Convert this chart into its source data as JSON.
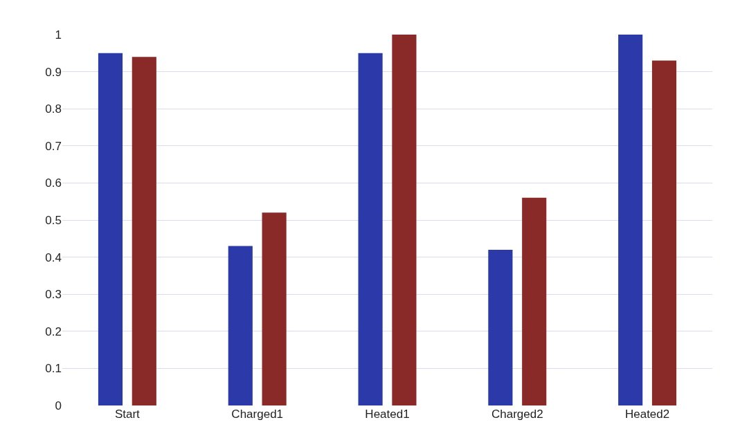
{
  "chart_data": {
    "type": "bar",
    "categories": [
      "Start",
      "Charged1",
      "Heated1",
      "Charged2",
      "Heated2"
    ],
    "series": [
      {
        "color": "#2b3aa8",
        "values": [
          0.95,
          0.43,
          0.95,
          0.42,
          1.0
        ]
      },
      {
        "color": "#8a2a28",
        "values": [
          0.94,
          0.52,
          1.0,
          0.56,
          0.93
        ]
      }
    ],
    "ylim": [
      0,
      1
    ],
    "yticks": [
      0,
      0.1,
      0.2,
      0.3,
      0.4,
      0.5,
      0.6,
      0.7,
      0.8,
      0.9,
      1
    ],
    "grid": "y"
  }
}
